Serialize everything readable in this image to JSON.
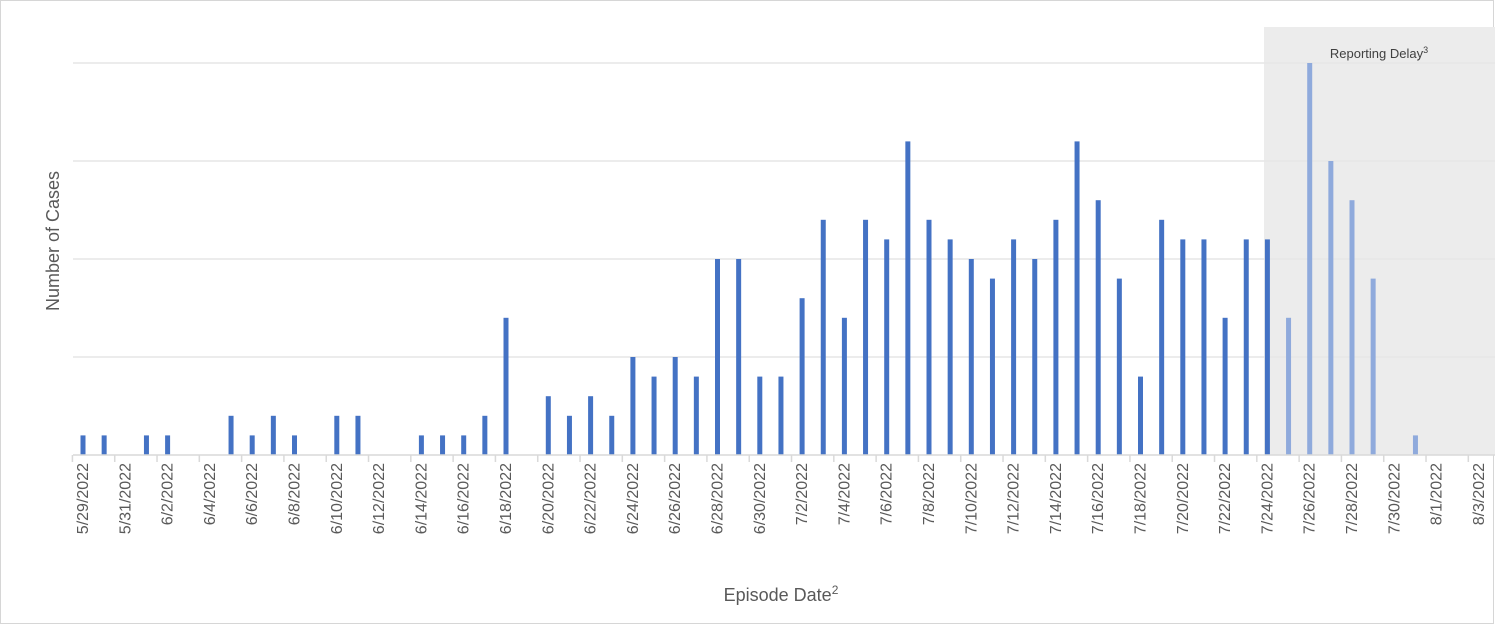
{
  "chart_data": {
    "type": "bar",
    "xlabel": "Episode Date",
    "xlabel_sup": "2",
    "ylabel": "Number of Cases",
    "ylim": [
      0,
      20
    ],
    "grid": true,
    "shaded_region": {
      "label": "Reporting Delay",
      "label_sup": "3",
      "from": "7/24/2022",
      "to": "8/3/2022",
      "color": "#ececec"
    },
    "colors": {
      "bar": "#4472c4",
      "bar_delayed": "#8faadc",
      "gridline": "#e6e6e6",
      "axis": "#d9d9d9"
    },
    "x_tick_labels": [
      "5/29/2022",
      "5/31/2022",
      "6/2/2022",
      "6/4/2022",
      "6/6/2022",
      "6/8/2022",
      "6/10/2022",
      "6/12/2022",
      "6/14/2022",
      "6/16/2022",
      "6/18/2022",
      "6/20/2022",
      "6/22/2022",
      "6/24/2022",
      "6/26/2022",
      "6/28/2022",
      "6/30/2022",
      "7/2/2022",
      "7/4/2022",
      "7/6/2022",
      "7/8/2022",
      "7/10/2022",
      "7/12/2022",
      "7/14/2022",
      "7/16/2022",
      "7/18/2022",
      "7/20/2022",
      "7/22/2022",
      "7/24/2022",
      "7/26/2022",
      "7/28/2022",
      "7/30/2022",
      "8/1/2022",
      "8/3/2022"
    ],
    "series": [
      {
        "values": [
          1,
          1,
          0,
          1,
          1,
          0,
          0,
          2,
          1,
          2,
          1,
          0,
          2,
          2,
          0,
          0,
          1,
          1,
          1,
          2,
          7,
          0,
          3,
          2,
          3,
          2,
          5,
          4,
          5,
          4,
          10,
          10,
          4,
          4,
          8,
          12,
          7,
          12,
          11,
          16,
          12,
          11,
          10,
          9,
          11,
          10,
          12,
          16,
          13,
          9,
          4,
          12,
          11,
          11,
          7,
          11,
          11
        ],
        "delayed_values": [
          7,
          20,
          15,
          13,
          9,
          0,
          1,
          0,
          0,
          0,
          0
        ]
      }
    ]
  }
}
